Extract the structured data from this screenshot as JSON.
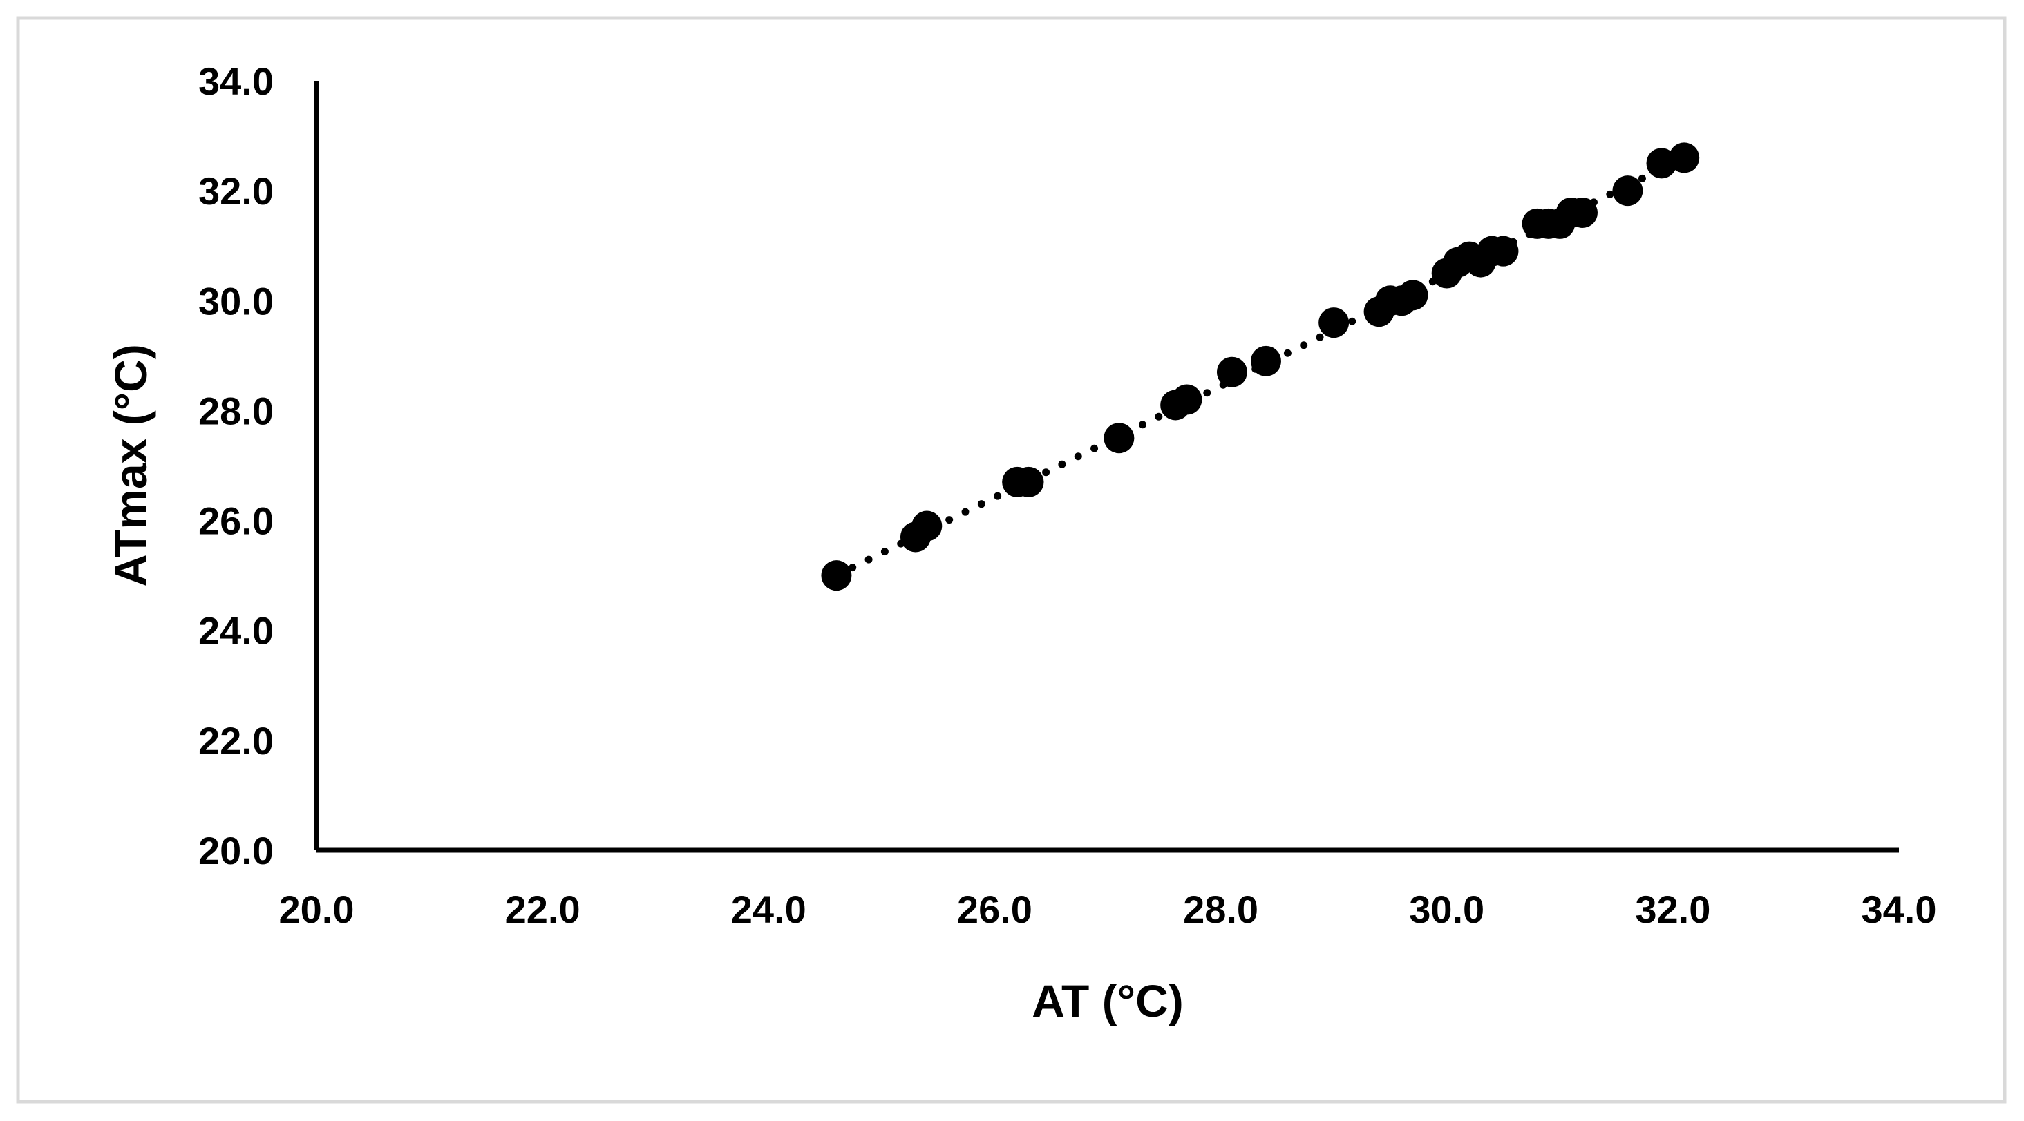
{
  "chart_data": {
    "type": "scatter",
    "title": "",
    "xlabel": "AT (°C)",
    "ylabel": "ATmax (°C)",
    "xlim": [
      20.0,
      34.0
    ],
    "ylim": [
      20.0,
      34.0
    ],
    "x_ticks": [
      "20.0",
      "22.0",
      "24.0",
      "26.0",
      "28.0",
      "30.0",
      "32.0",
      "34.0"
    ],
    "y_ticks": [
      "20.0",
      "22.0",
      "24.0",
      "26.0",
      "28.0",
      "30.0",
      "32.0",
      "34.0"
    ],
    "grid": false,
    "legend": "none",
    "trendline": {
      "style": "dotted",
      "from": [
        24.6,
        25.0
      ],
      "to": [
        32.1,
        32.6
      ]
    },
    "series": [
      {
        "marker": "filled-circle",
        "color": "#000000",
        "x": [
          24.6,
          25.3,
          25.4,
          26.2,
          26.3,
          27.1,
          27.6,
          27.7,
          28.1,
          28.4,
          29.0,
          29.4,
          29.5,
          29.6,
          29.7,
          30.0,
          30.1,
          30.2,
          30.3,
          30.4,
          30.5,
          30.8,
          30.9,
          31.0,
          31.1,
          31.2,
          31.6,
          31.9,
          32.1
        ],
        "y": [
          25.0,
          25.7,
          25.9,
          26.7,
          26.7,
          27.5,
          28.1,
          28.2,
          28.7,
          28.9,
          29.6,
          29.8,
          30.0,
          30.0,
          30.1,
          30.5,
          30.7,
          30.8,
          30.7,
          30.9,
          30.9,
          31.4,
          31.4,
          31.4,
          31.6,
          31.6,
          32.0,
          32.5,
          32.6
        ]
      }
    ]
  },
  "colors": {
    "frame": "#d9d9d9",
    "axis": "#000000",
    "marker": "#000000"
  }
}
